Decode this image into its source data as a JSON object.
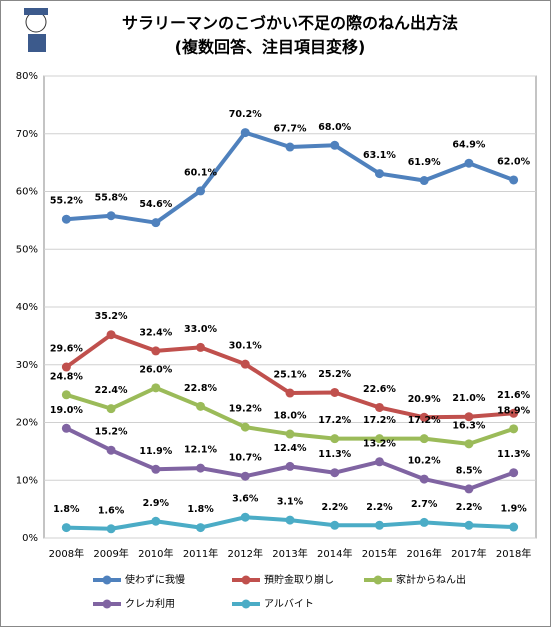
{
  "chart_data": {
    "type": "line",
    "title": "サラリーマンのこづかい不足の際のねん出方法",
    "subtitle": "(複数回答、注目項目変移)",
    "categories": [
      "2008年",
      "2009年",
      "2010年",
      "2011年",
      "2012年",
      "2013年",
      "2014年",
      "2015年",
      "2016年",
      "2017年",
      "2018年"
    ],
    "ylim": [
      0,
      80
    ],
    "yticks": [
      {
        "value": 0,
        "label": "0%"
      },
      {
        "value": 10,
        "label": "10%"
      },
      {
        "value": 20,
        "label": "20%"
      },
      {
        "value": 30,
        "label": "30%"
      },
      {
        "value": 40,
        "label": "40%"
      },
      {
        "value": 50,
        "label": "50%"
      },
      {
        "value": 60,
        "label": "60%"
      },
      {
        "value": 70,
        "label": "70%"
      },
      {
        "value": 80,
        "label": "80%"
      }
    ],
    "grid": true,
    "series": [
      {
        "name": "使わずに我慢",
        "color": "#4f81bd",
        "values": [
          55.2,
          55.8,
          54.6,
          60.1,
          70.2,
          67.7,
          68.0,
          63.1,
          61.9,
          64.9,
          62.0
        ],
        "value_labels": [
          "55.2%",
          "55.8%",
          "54.6%",
          "60.1%",
          "70.2%",
          "67.7%",
          "68.0%",
          "63.1%",
          "61.9%",
          "64.9%",
          "62.0%"
        ]
      },
      {
        "name": "預貯金取り崩し",
        "color": "#c0504d",
        "values": [
          29.6,
          35.2,
          32.4,
          33.0,
          30.1,
          25.1,
          25.2,
          22.6,
          20.9,
          21.0,
          21.6
        ],
        "value_labels": [
          "29.6%",
          "35.2%",
          "32.4%",
          "33.0%",
          "30.1%",
          "25.1%",
          "25.2%",
          "22.6%",
          "20.9%",
          "21.0%",
          "21.6%"
        ]
      },
      {
        "name": "家計からねん出",
        "color": "#9bbb59",
        "values": [
          24.8,
          22.4,
          26.0,
          22.8,
          19.2,
          18.0,
          17.2,
          17.2,
          17.2,
          16.3,
          18.9
        ],
        "value_labels": [
          "24.8%",
          "22.4%",
          "26.0%",
          "22.8%",
          "19.2%",
          "18.0%",
          "17.2%",
          "17.2%",
          "17.2%",
          "16.3%",
          "18.9%"
        ]
      },
      {
        "name": "クレカ利用",
        "color": "#8064a2",
        "values": [
          19.0,
          15.2,
          11.9,
          12.1,
          10.7,
          12.4,
          11.3,
          13.2,
          10.2,
          8.5,
          11.3
        ],
        "value_labels": [
          "19.0%",
          "15.2%",
          "11.9%",
          "12.1%",
          "10.7%",
          "12.4%",
          "11.3%",
          "13.2%",
          "10.2%",
          "8.5%",
          "11.3%"
        ]
      },
      {
        "name": "アルバイト",
        "color": "#4bacc6",
        "values": [
          1.8,
          1.6,
          2.9,
          1.8,
          3.6,
          3.1,
          2.2,
          2.2,
          2.7,
          2.2,
          1.9
        ],
        "value_labels": [
          "1.8%",
          "1.6%",
          "2.9%",
          "1.8%",
          "3.6%",
          "3.1%",
          "2.2%",
          "2.2%",
          "2.7%",
          "2.2%",
          "1.9%"
        ]
      }
    ]
  }
}
